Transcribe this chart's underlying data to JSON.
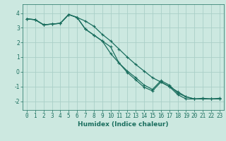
{
  "xlabel": "Humidex (Indice chaleur)",
  "background_color": "#cce8e0",
  "grid_color": "#aacfc8",
  "line_color": "#1a6e5e",
  "xlim": [
    -0.5,
    23.5
  ],
  "ylim": [
    -2.6,
    4.6
  ],
  "xticks": [
    0,
    1,
    2,
    3,
    4,
    5,
    6,
    7,
    8,
    9,
    10,
    11,
    12,
    13,
    14,
    15,
    16,
    17,
    18,
    19,
    20,
    21,
    22,
    23
  ],
  "yticks": [
    -2,
    -1,
    0,
    1,
    2,
    3,
    4
  ],
  "line1_x": [
    0,
    1,
    2,
    3,
    4,
    5,
    6,
    7,
    8,
    9,
    10,
    11,
    12,
    13,
    14,
    15,
    16,
    17,
    18,
    19,
    20,
    21,
    22,
    23
  ],
  "line1_y": [
    3.6,
    3.55,
    3.2,
    3.25,
    3.3,
    3.9,
    3.7,
    3.45,
    3.1,
    2.55,
    2.1,
    1.55,
    1.0,
    0.5,
    0.05,
    -0.4,
    -0.7,
    -1.0,
    -1.35,
    -1.7,
    -1.85,
    -1.85,
    -1.85,
    -1.85
  ],
  "line2_x": [
    0,
    1,
    2,
    3,
    4,
    5,
    6,
    7,
    8,
    9,
    10,
    11,
    12,
    13,
    14,
    15,
    16,
    17,
    18,
    19,
    20,
    21,
    22,
    23
  ],
  "line2_y": [
    3.6,
    3.55,
    3.2,
    3.25,
    3.3,
    3.9,
    3.7,
    2.9,
    2.5,
    2.1,
    1.25,
    0.6,
    0.05,
    -0.4,
    -0.9,
    -1.2,
    -0.6,
    -0.9,
    -1.45,
    -1.7,
    -1.85,
    -1.85,
    -1.85,
    -1.85
  ],
  "line3_x": [
    0,
    1,
    2,
    3,
    4,
    5,
    6,
    7,
    8,
    9,
    10,
    11,
    12,
    13,
    14,
    15,
    16,
    17,
    18,
    19,
    20,
    21,
    22,
    23
  ],
  "line3_y": [
    3.6,
    3.55,
    3.2,
    3.25,
    3.3,
    3.9,
    3.7,
    2.9,
    2.5,
    2.1,
    1.7,
    0.6,
    -0.05,
    -0.55,
    -1.05,
    -1.3,
    -0.7,
    -1.0,
    -1.55,
    -1.85,
    -1.85,
    -1.8,
    -1.85,
    -1.8
  ],
  "marker": "+",
  "marker_size": 3,
  "line_width": 0.9,
  "tick_font_size": 5.5,
  "xlabel_font_size": 6.5
}
